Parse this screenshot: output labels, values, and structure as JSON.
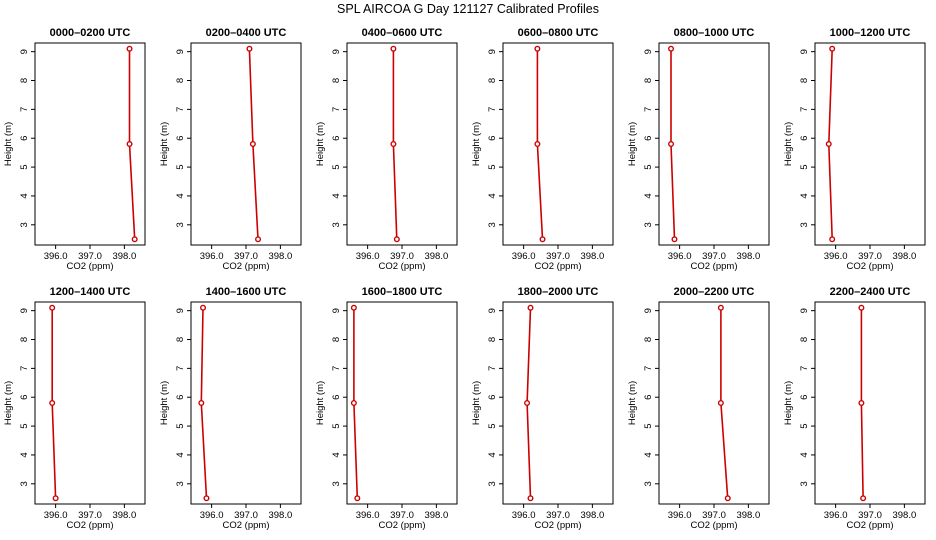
{
  "figure": {
    "title": "SPL AIRCOA G  Day 121127  Calibrated Profiles"
  },
  "chart_data": {
    "type": "line",
    "layout": "small-multiples 2x6",
    "xlabel": "CO2 (ppm)",
    "ylabel": "Height (m)",
    "xlim": [
      395.4,
      398.6
    ],
    "ylim": [
      2.3,
      9.3
    ],
    "xticks": [
      "396.0",
      "397.0",
      "398.0"
    ],
    "yticks": [
      "3",
      "4",
      "5",
      "6",
      "7",
      "8",
      "9"
    ],
    "heights": [
      9.1,
      5.8,
      2.5
    ],
    "line_color": "#cc0000",
    "panels": [
      {
        "title": "0000–0200 UTC",
        "co2": [
          398.15,
          398.15,
          398.3
        ]
      },
      {
        "title": "0200–0400 UTC",
        "co2": [
          397.1,
          397.2,
          397.35
        ]
      },
      {
        "title": "0400–0600 UTC",
        "co2": [
          396.75,
          396.75,
          396.85
        ]
      },
      {
        "title": "0600–0800 UTC",
        "co2": [
          396.4,
          396.4,
          396.55
        ]
      },
      {
        "title": "0800–1000 UTC",
        "co2": [
          395.75,
          395.75,
          395.85
        ]
      },
      {
        "title": "1000–1200 UTC",
        "co2": [
          395.9,
          395.8,
          395.9
        ]
      },
      {
        "title": "1200–1400 UTC",
        "co2": [
          395.9,
          395.9,
          396.0
        ]
      },
      {
        "title": "1400–1600 UTC",
        "co2": [
          395.75,
          395.7,
          395.85
        ]
      },
      {
        "title": "1600–1800 UTC",
        "co2": [
          395.6,
          395.6,
          395.7
        ]
      },
      {
        "title": "1800–2000 UTC",
        "co2": [
          396.2,
          396.1,
          396.2
        ]
      },
      {
        "title": "2000–2200 UTC",
        "co2": [
          397.2,
          397.2,
          397.4
        ]
      },
      {
        "title": "2200–2400 UTC",
        "co2": [
          396.75,
          396.75,
          396.8
        ]
      }
    ]
  }
}
